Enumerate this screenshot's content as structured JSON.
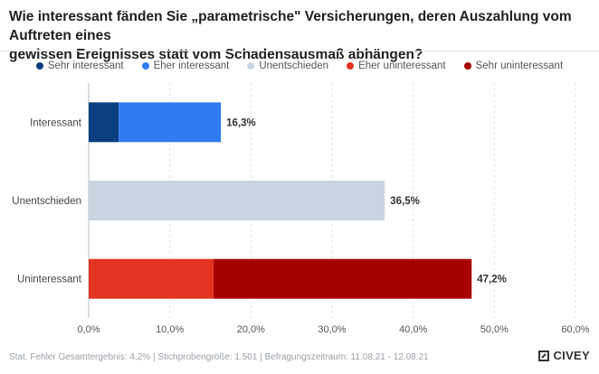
{
  "title_lines": [
    "Wie interessant fänden Sie „parametrische\" Versicherungen, deren Auszahlung vom Auftreten eines",
    "gewissen Ereignisses statt vom Schadensausmaß abhängen?"
  ],
  "footer": {
    "note": "Stat. Fehler Gesamtergebnis: 4,2% | Stichprobengröße: 1.501 | Befragungszeitraum: 11.08.21 - 12.08.21",
    "brand": "CIVEY"
  },
  "chart_data": {
    "type": "bar",
    "orientation": "horizontal",
    "stacked": true,
    "title": "Wie interessant fänden Sie „parametrische\" Versicherungen, deren Auszahlung vom Auftreten eines gewissen Ereignisses statt vom Schadensausmaß abhängen?",
    "legend_position": "top",
    "legend": [
      {
        "name": "Sehr interessant",
        "color": "#0b3f80"
      },
      {
        "name": "Eher interessant",
        "color": "#2f7cf0"
      },
      {
        "name": "Unentschieden",
        "color": "#c8d4df"
      },
      {
        "name": "Eher uninteressant",
        "color": "#e23420"
      },
      {
        "name": "Sehr uninteressant",
        "color": "#a80000"
      }
    ],
    "categories": [
      "Interessant",
      "Unentschieden",
      "Uninteressant"
    ],
    "bars": [
      {
        "category": "Interessant",
        "total_label": "16,3%",
        "total": 16.3,
        "segments": [
          {
            "series": "Sehr interessant",
            "value": 3.7
          },
          {
            "series": "Eher interessant",
            "value": 12.6
          }
        ]
      },
      {
        "category": "Unentschieden",
        "total_label": "36,5%",
        "total": 36.5,
        "segments": [
          {
            "series": "Unentschieden",
            "value": 36.5
          }
        ]
      },
      {
        "category": "Uninteressant",
        "total_label": "47,2%",
        "total": 47.2,
        "segments": [
          {
            "series": "Eher uninteressant",
            "value": 15.4
          },
          {
            "series": "Sehr uninteressant",
            "value": 31.8
          }
        ]
      }
    ],
    "xlim": [
      0,
      60
    ],
    "x_ticks": [
      0,
      10,
      20,
      30,
      40,
      50,
      60
    ],
    "x_tick_labels": [
      "0,0%",
      "10,0%",
      "20,0%",
      "30,0%",
      "40,0%",
      "50,0%",
      "60,0%"
    ],
    "xlabel": "",
    "ylabel": "",
    "grid": true
  }
}
